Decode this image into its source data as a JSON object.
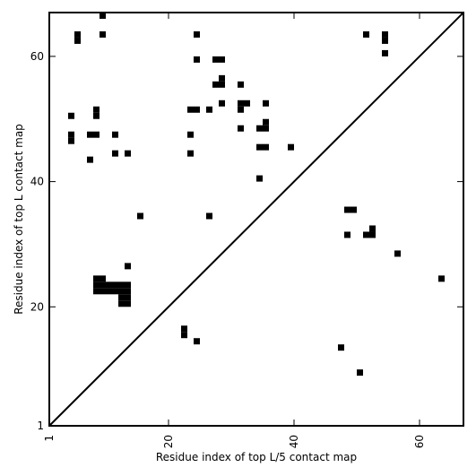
{
  "chart_data": {
    "type": "heatmap",
    "title": "",
    "xlabel": "Residue index of top L/5 contact map",
    "ylabel": "Residue index of top L contact map",
    "xlim": [
      1,
      66
    ],
    "ylim": [
      1,
      66
    ],
    "x_ticks": [
      1,
      20,
      40,
      60
    ],
    "y_ticks": [
      1,
      20,
      40,
      60
    ],
    "x_tick_labels": [
      "1",
      "20",
      "40",
      "60"
    ],
    "y_tick_labels": [
      "1",
      "20",
      "40",
      "60"
    ],
    "x_tick_rotation": -90,
    "diagonal": true,
    "grid": false,
    "cell_color": "#000000",
    "background": "#ffffff",
    "upper_triangle_contacts": [
      [
        9,
        66
      ],
      [
        5,
        63
      ],
      [
        9,
        63
      ],
      [
        24,
        63
      ],
      [
        51,
        63
      ],
      [
        54,
        63
      ],
      [
        5,
        62
      ],
      [
        54,
        62
      ],
      [
        24,
        59
      ],
      [
        27,
        59
      ],
      [
        28,
        59
      ],
      [
        54,
        60
      ],
      [
        28,
        56
      ],
      [
        27,
        55
      ],
      [
        28,
        55
      ],
      [
        31,
        55
      ],
      [
        28,
        52
      ],
      [
        31,
        52
      ],
      [
        32,
        52
      ],
      [
        35,
        52
      ],
      [
        8,
        51
      ],
      [
        23,
        51
      ],
      [
        24,
        51
      ],
      [
        26,
        51
      ],
      [
        31,
        51
      ],
      [
        4,
        50
      ],
      [
        8,
        50
      ],
      [
        35,
        49
      ],
      [
        31,
        48
      ],
      [
        34,
        48
      ],
      [
        35,
        48
      ],
      [
        4,
        47
      ],
      [
        7,
        47
      ],
      [
        8,
        47
      ],
      [
        11,
        47
      ],
      [
        23,
        47
      ],
      [
        4,
        46
      ],
      [
        34,
        45
      ],
      [
        35,
        45
      ],
      [
        39,
        45
      ],
      [
        11,
        44
      ],
      [
        13,
        44
      ],
      [
        23,
        44
      ],
      [
        7,
        43
      ],
      [
        34,
        40
      ],
      [
        15,
        34
      ],
      [
        26,
        34
      ],
      [
        8,
        24
      ],
      [
        9,
        24
      ],
      [
        8,
        23
      ],
      [
        9,
        23
      ],
      [
        10,
        23
      ],
      [
        11,
        23
      ],
      [
        12,
        23
      ],
      [
        13,
        23
      ],
      [
        8,
        22
      ],
      [
        9,
        22
      ],
      [
        10,
        22
      ],
      [
        11,
        22
      ],
      [
        12,
        22
      ],
      [
        13,
        22
      ],
      [
        12,
        21
      ],
      [
        13,
        21
      ],
      [
        12,
        20
      ],
      [
        13,
        20
      ],
      [
        13,
        26
      ]
    ],
    "lower_triangle_contacts": [
      [
        48,
        35
      ],
      [
        49,
        35
      ],
      [
        52,
        32
      ],
      [
        48,
        31
      ],
      [
        51,
        31
      ],
      [
        52,
        31
      ],
      [
        56,
        28
      ],
      [
        63,
        24
      ],
      [
        22,
        16
      ],
      [
        22,
        15
      ],
      [
        24,
        14
      ],
      [
        47,
        13
      ],
      [
        50,
        9
      ]
    ]
  }
}
